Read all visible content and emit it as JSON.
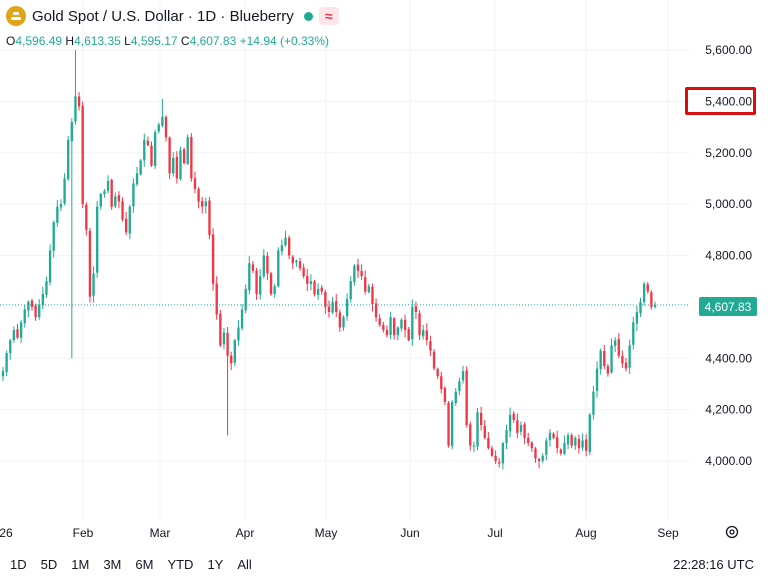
{
  "header": {
    "symbol_title": "Gold Spot / U.S. Dollar · 1D · Blueberry",
    "icons": [
      "gold-coin-icon",
      "status-dot-icon",
      "wave-indicator-icon"
    ],
    "ohlc": {
      "o_label": "O",
      "o_value": "4,596.49",
      "h_label": "H",
      "h_value": "4,613.35",
      "l_label": "L",
      "l_value": "4,595.17",
      "c_label": "C",
      "c_value": "4,607.83",
      "change": "+14.94 (+0.33%)"
    }
  },
  "chart_data": {
    "type": "candlestick",
    "y_axis": {
      "ticks": [
        4000,
        4200,
        4400,
        4600,
        4800,
        5000,
        5200,
        5400,
        5600
      ],
      "tick_labels": [
        "4,000.00",
        "4,200.00",
        "4,400.00",
        "4,600.00",
        "4,800.00",
        "5,000.00",
        "5,200.00",
        "5,400.00",
        "5,600.00"
      ],
      "range": [
        3800,
        5800
      ],
      "highlighted_tick": "5,400.00"
    },
    "x_axis": {
      "labels": [
        "26",
        "Feb",
        "Mar",
        "Apr",
        "May",
        "Jun",
        "Jul",
        "Aug",
        "Sep"
      ]
    },
    "last_price": 4607.83,
    "last_price_label": "4,607.83",
    "up_color": "#22ab94",
    "down_color": "#f23645",
    "grid": true,
    "closes": [
      4350,
      4420,
      4470,
      4510,
      4480,
      4540,
      4590,
      4620,
      4600,
      4560,
      4610,
      4650,
      4700,
      4820,
      4930,
      4990,
      5000,
      5100,
      5250,
      5320,
      5420,
      5380,
      5000,
      4900,
      4640,
      4730,
      4990,
      5040,
      5050,
      5090,
      4990,
      5030,
      5010,
      4940,
      4890,
      4990,
      5080,
      5120,
      5170,
      5250,
      5230,
      5150,
      5280,
      5310,
      5340,
      5260,
      5120,
      5180,
      5100,
      5210,
      5160,
      5260,
      5100,
      5060,
      5010,
      4990,
      5010,
      4880,
      4690,
      4570,
      4450,
      4500,
      4410,
      4380,
      4470,
      4520,
      4590,
      4670,
      4770,
      4740,
      4650,
      4720,
      4800,
      4730,
      4650,
      4680,
      4820,
      4840,
      4870,
      4800,
      4770,
      4780,
      4750,
      4720,
      4690,
      4700,
      4650,
      4670,
      4660,
      4600,
      4580,
      4620,
      4580,
      4520,
      4560,
      4630,
      4700,
      4760,
      4740,
      4720,
      4660,
      4680,
      4610,
      4560,
      4530,
      4510,
      4490,
      4560,
      4490,
      4520,
      4550,
      4510,
      4470,
      4600,
      4580,
      4490,
      4510,
      4470,
      4430,
      4360,
      4330,
      4280,
      4230,
      4060,
      4230,
      4270,
      4310,
      4350,
      4140,
      4060,
      4060,
      4190,
      4140,
      4090,
      4050,
      4020,
      4000,
      3990,
      4070,
      4120,
      4180,
      4160,
      4110,
      4140,
      4090,
      4070,
      4050,
      4010,
      4000,
      4020,
      4080,
      4110,
      4090,
      4050,
      4030,
      4070,
      4100,
      4060,
      4090,
      4050,
      4080,
      4040,
      4180,
      4270,
      4360,
      4430,
      4370,
      4340,
      4450,
      4470,
      4410,
      4380,
      4360,
      4450,
      4540,
      4580,
      4620,
      4690,
      4660,
      4600,
      4607.83
    ]
  },
  "timeframes": [
    "1D",
    "5D",
    "1M",
    "3M",
    "6M",
    "YTD",
    "1Y",
    "All"
  ],
  "status": {
    "clock": "22:28:16 UTC"
  }
}
